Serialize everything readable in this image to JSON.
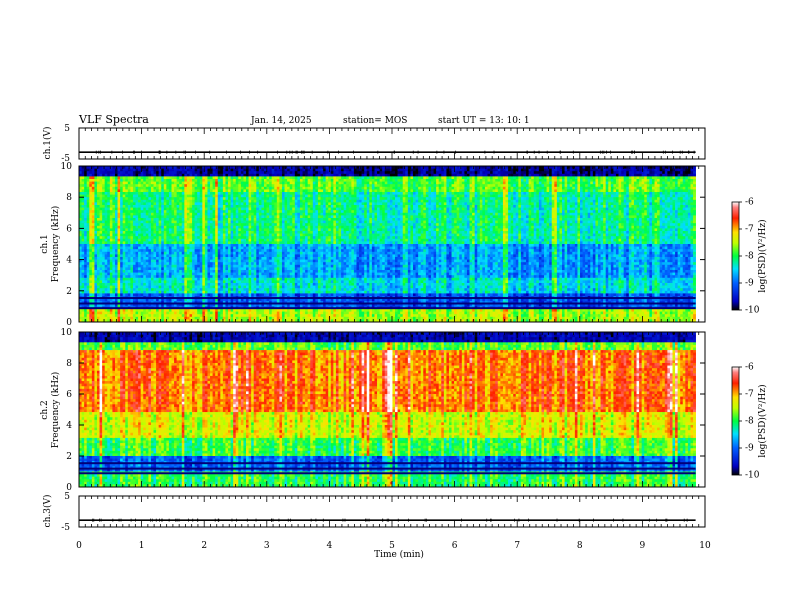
{
  "header": {
    "title": "VLF Spectra",
    "date": "Jan. 14, 2025",
    "station": "station= MOS",
    "start": "start UT =  13: 10: 1"
  },
  "chart_data": [
    {
      "type": "line",
      "name": "ch1-waveform",
      "ylabel": "ch.1(V)",
      "ylim": [
        -5,
        5
      ],
      "yticks": [
        "5",
        "-5"
      ],
      "xlim": [
        0,
        10
      ],
      "baseline": -2.8
    },
    {
      "type": "heatmap",
      "name": "ch1-spectrogram",
      "ylabel": "ch.1\nFrequency (kHz)",
      "ylabel_channel": "ch.1",
      "ylabel_axis": "Frequency (kHz)",
      "ylim": [
        0,
        10
      ],
      "yticks": [
        "0",
        "2",
        "4",
        "6",
        "8",
        "10"
      ],
      "xlim": [
        0,
        9.85
      ],
      "colorbar": {
        "label": "log(PSD)(V²/Hz)",
        "range": [
          -10,
          -6
        ],
        "ticks": [
          "-6",
          "-7",
          "-8",
          "-9",
          "-10"
        ]
      }
    },
    {
      "type": "heatmap",
      "name": "ch2-spectrogram",
      "ylabel_channel": "ch.2",
      "ylabel_axis": "Frequency (kHz)",
      "ylim": [
        0,
        10
      ],
      "yticks": [
        "0",
        "2",
        "4",
        "6",
        "8",
        "10"
      ],
      "xlim": [
        0,
        9.85
      ],
      "colorbar": {
        "label": "log(PSD)(V²/Hz)",
        "range": [
          -10,
          -6
        ],
        "ticks": [
          "-6",
          "-7",
          "-8",
          "-9",
          "-10"
        ]
      }
    },
    {
      "type": "line",
      "name": "ch3-waveform",
      "ylabel": "ch.3(V)",
      "ylim": [
        -5,
        5
      ],
      "yticks": [
        "5",
        "-5"
      ],
      "xlim": [
        0,
        10
      ],
      "baseline": -2.8
    }
  ],
  "xaxis": {
    "label": "Time (min)",
    "ticks": [
      "0",
      "1",
      "2",
      "3",
      "4",
      "5",
      "6",
      "7",
      "8",
      "9",
      "10"
    ]
  },
  "colors": {
    "colormap": [
      "#000000",
      "#0000ff",
      "#00ffff",
      "#00ff00",
      "#ffff00",
      "#ff0000",
      "#ffffff"
    ]
  }
}
